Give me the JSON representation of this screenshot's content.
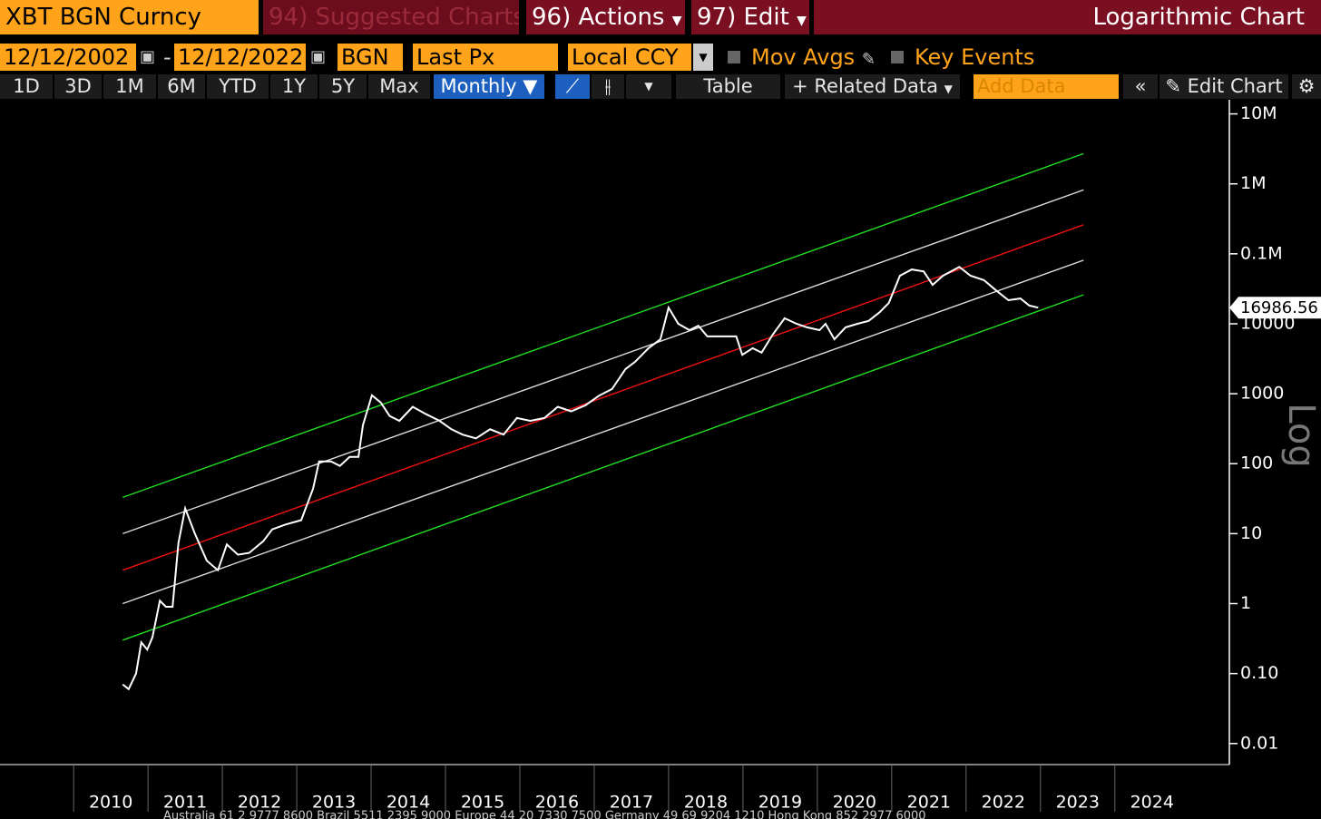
{
  "header": {
    "ticker": "XBT BGN Curncy",
    "menu": [
      "94) Suggested Charts",
      "96) Actions",
      "97) Edit"
    ],
    "title": "Logarithmic Chart"
  },
  "toolbar": {
    "start_date": "12/12/2002",
    "end_date": "12/12/2022",
    "source": "BGN",
    "field": "Last Px",
    "currency": "Local CCY",
    "options": [
      "Mov Avgs",
      "Key Events"
    ],
    "periods": [
      "1D",
      "3D",
      "1M",
      "6M",
      "YTD",
      "1Y",
      "5Y",
      "Max"
    ],
    "frequency": "Monthly",
    "table": "Table",
    "related": "Related Data",
    "add_data": "Add Data",
    "edit_chart": "Edit Chart"
  },
  "chart_data": {
    "type": "line",
    "yscale": "log",
    "y_scale_label": "Log",
    "xlim": [
      2009.01,
      2025.54
    ],
    "xticks": [
      2010,
      2011,
      2012,
      2013,
      2014,
      2015,
      2016,
      2017,
      2018,
      2019,
      2020,
      2021,
      2022,
      2023,
      2024
    ],
    "ylim": [
      0.005,
      15000000
    ],
    "yticks": [
      {
        "value": 10000000,
        "label": "10M"
      },
      {
        "value": 1000000,
        "label": "1M"
      },
      {
        "value": 100000,
        "label": "0.1M"
      },
      {
        "value": 10000,
        "label": "10000"
      },
      1000,
      100,
      10,
      1,
      {
        "value": 0.1,
        "label": "0.10"
      },
      0.01
    ],
    "last_value": 16986.56,
    "series": [
      {
        "color": "#ffffff",
        "x": [
          2010.66,
          2010.74,
          2010.84,
          2010.91,
          2010.99,
          2011.06,
          2011.16,
          2011.24,
          2011.33,
          2011.41,
          2011.5,
          2011.63,
          2011.79,
          2011.94,
          2012.06,
          2012.21,
          2012.36,
          2012.55,
          2012.67,
          2012.85,
          2013.06,
          2013.22,
          2013.3,
          2013.46,
          2013.58,
          2013.71,
          2013.83,
          2013.89,
          2014.01,
          2014.13,
          2014.25,
          2014.38,
          2014.56,
          2014.74,
          2014.92,
          2015.08,
          2015.23,
          2015.41,
          2015.6,
          2015.78,
          2015.96,
          2016.14,
          2016.33,
          2016.51,
          2016.69,
          2016.88,
          2017.06,
          2017.24,
          2017.42,
          2017.55,
          2017.73,
          2017.89,
          2018.0,
          2018.13,
          2018.28,
          2018.4,
          2018.52,
          2018.71,
          2018.91,
          2018.99,
          2019.13,
          2019.25,
          2019.4,
          2019.56,
          2019.72,
          2019.86,
          2020.03,
          2020.11,
          2020.23,
          2020.38,
          2020.54,
          2020.69,
          2020.84,
          2020.96,
          2021.11,
          2021.27,
          2021.43,
          2021.55,
          2021.69,
          2021.91,
          2022.06,
          2022.24,
          2022.42,
          2022.57,
          2022.73,
          2022.85,
          2022.97
        ],
        "values": [
          0.07,
          0.06,
          0.1,
          0.28,
          0.22,
          0.33,
          1.1,
          0.9,
          0.9,
          7.4,
          23,
          10,
          4.1,
          3,
          7,
          5,
          5.3,
          7.8,
          11.5,
          13.5,
          15.6,
          44,
          108,
          108,
          93,
          125,
          125,
          355,
          950,
          750,
          480,
          410,
          650,
          510,
          410,
          310,
          260,
          230,
          310,
          260,
          450,
          410,
          450,
          650,
          560,
          680,
          930,
          1170,
          2250,
          2860,
          4480,
          6000,
          17000,
          10000,
          8100,
          9400,
          6600,
          6600,
          6600,
          3600,
          4480,
          3870,
          7000,
          12000,
          10000,
          8900,
          8100,
          10000,
          6000,
          8900,
          10000,
          11000,
          14700,
          19800,
          48700,
          59800,
          56000,
          36000,
          48700,
          65000,
          48700,
          42000,
          29000,
          21700,
          23000,
          18200,
          17000
        ]
      },
      {
        "color": "#22dd22",
        "x": [
          2010.66,
          2023.58
        ],
        "values": [
          33,
          2700000
        ]
      },
      {
        "color": "#dddddd",
        "x": [
          2010.66,
          2023.58
        ],
        "values": [
          10,
          820000
        ]
      },
      {
        "color": "#ee1111",
        "x": [
          2010.66,
          2023.58
        ],
        "values": [
          3,
          260000
        ]
      },
      {
        "color": "#dddddd",
        "x": [
          2010.66,
          2023.58
        ],
        "values": [
          1,
          81000
        ]
      },
      {
        "color": "#22dd22",
        "x": [
          2010.66,
          2023.58
        ],
        "values": [
          0.3,
          26000
        ]
      }
    ]
  },
  "footer": "Australia 61 2 9777 8600 Brazil 5511 2395 9000 Europe 44 20 7330 7500 Germany 49 69 9204 1210 Hong Kong 852 2977 6000"
}
